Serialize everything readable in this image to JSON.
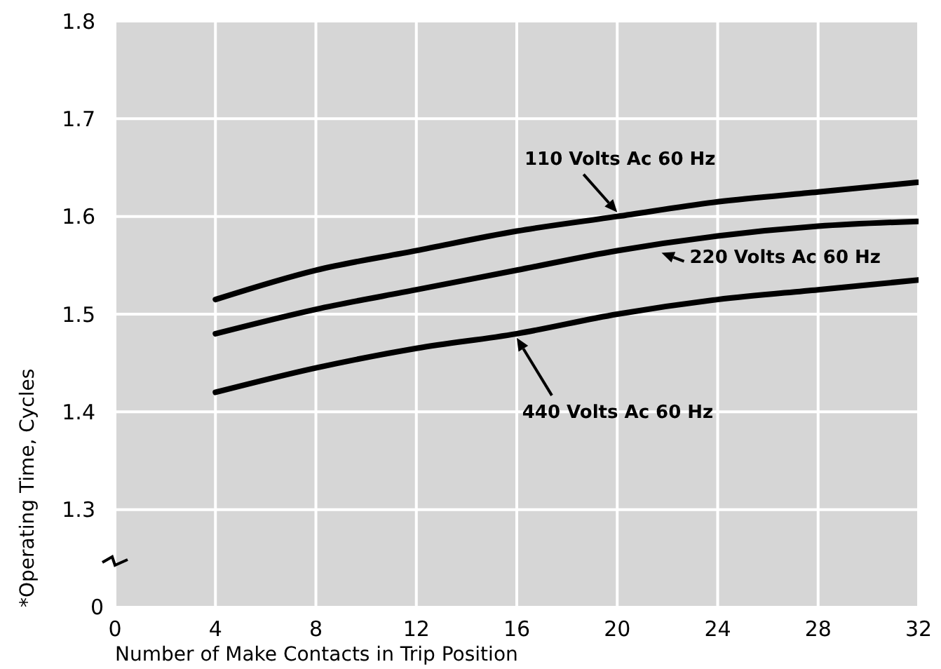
{
  "chart_data": {
    "type": "line",
    "xlabel": "Number of Make Contacts in Trip Position",
    "ylabel": "*Operating Time, Cycles",
    "x": [
      4,
      8,
      12,
      16,
      20,
      24,
      28,
      32
    ],
    "series": [
      {
        "name": "110 Volts Ac 60 Hz",
        "color": "#000000",
        "values": [
          1.515,
          1.545,
          1.565,
          1.585,
          1.6,
          1.615,
          1.625,
          1.635
        ]
      },
      {
        "name": "220 Volts Ac 60 Hz",
        "color": "#000000",
        "values": [
          1.48,
          1.505,
          1.525,
          1.545,
          1.565,
          1.58,
          1.59,
          1.595
        ]
      },
      {
        "name": "440 Volts Ac 60 Hz",
        "color": "#000000",
        "values": [
          1.42,
          1.445,
          1.465,
          1.48,
          1.5,
          1.515,
          1.525,
          1.535
        ]
      }
    ],
    "xlim": [
      0,
      32
    ],
    "xticks": [
      0,
      4,
      8,
      12,
      16,
      20,
      24,
      28,
      32
    ],
    "ylim": [
      1.2,
      1.8
    ],
    "yticks": [
      1.3,
      1.4,
      1.5,
      1.6,
      1.7,
      1.8
    ],
    "annotations": [
      "0"
    ],
    "grid": true,
    "marker": "none",
    "line_style": "solid"
  }
}
